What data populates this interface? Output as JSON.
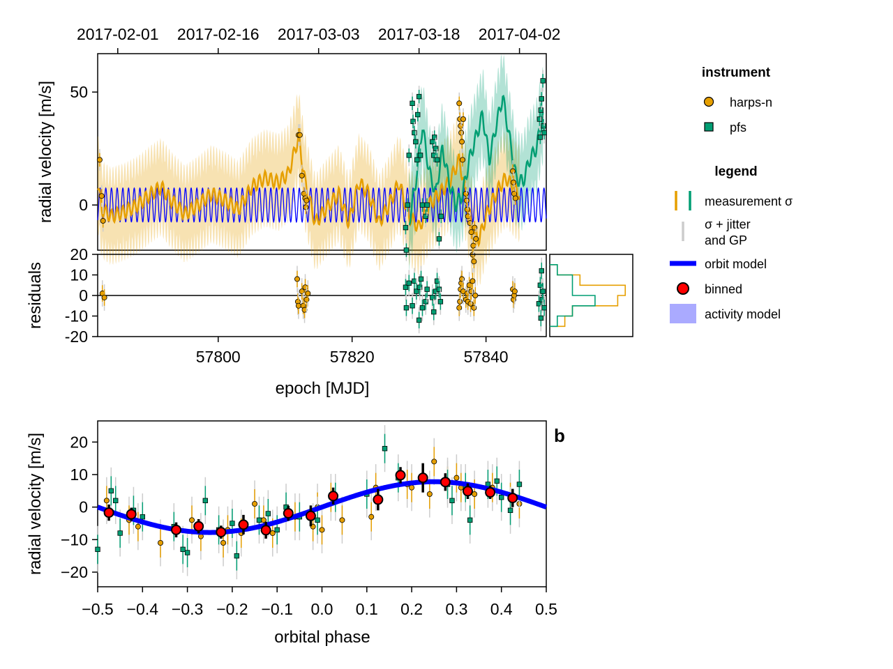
{
  "colors": {
    "harps": "#e69f00",
    "pfs": "#009e73",
    "orbit": "#0000ff",
    "binned": "#ff0000",
    "jitter": "#cccccc",
    "activity_fill": "#aaaaff"
  },
  "legend": {
    "instrument_title": "instrument",
    "instruments": [
      "harps-n",
      "pfs"
    ],
    "legend_title": "legend",
    "measurement_label": "measurement σ",
    "jitter_label_1": "σ + jitter",
    "jitter_label_2": "and GP",
    "orbit_label": "orbit model",
    "binned_label": "binned",
    "activity_label": "activity model"
  },
  "panel_b_label": "b",
  "chart_data": [
    {
      "id": "time_series",
      "type": "scatter",
      "xlabel": "epoch [MJD]",
      "ylabel": "radial velocity [m/s]",
      "xlim": [
        57782,
        57849
      ],
      "ylim": [
        -20,
        67
      ],
      "x_ticks": [
        57800,
        57820,
        57840
      ],
      "y_ticks": [
        0,
        50
      ],
      "top_axis": {
        "tick_mjd": [
          57785,
          57800,
          57815,
          57830,
          57845
        ],
        "tick_labels": [
          "2017-02-01",
          "2017-02-16",
          "2017-03-03",
          "2017-03-18",
          "2017-04-02"
        ]
      },
      "orbit_model": {
        "amplitude": 7.5,
        "period_days": 0.85
      },
      "harps_model": [
        [
          57782,
          10
        ],
        [
          57782.6,
          -2
        ],
        [
          57784,
          -5
        ],
        [
          57786,
          -3
        ],
        [
          57788,
          0
        ],
        [
          57790,
          5
        ],
        [
          57791.5,
          8
        ],
        [
          57793,
          2
        ],
        [
          57795,
          -4
        ],
        [
          57797,
          0
        ],
        [
          57799,
          5
        ],
        [
          57801,
          2
        ],
        [
          57803,
          -2
        ],
        [
          57805,
          8
        ],
        [
          57807,
          12
        ],
        [
          57809,
          10
        ],
        [
          57810.5,
          14
        ],
        [
          57812,
          30
        ],
        [
          57813,
          10
        ],
        [
          57814.5,
          -8
        ],
        [
          57816,
          -2
        ],
        [
          57818,
          5
        ],
        [
          57819.5,
          -8
        ],
        [
          57821,
          10
        ],
        [
          57822.5,
          5
        ],
        [
          57824,
          -8
        ],
        [
          57825.5,
          0
        ],
        [
          57827,
          10
        ],
        [
          57828.5,
          -5
        ],
        [
          57830,
          -10
        ],
        [
          57831.5,
          0
        ],
        [
          57833,
          5
        ],
        [
          57834.5,
          10
        ],
        [
          57836,
          20
        ],
        [
          57837,
          5
        ],
        [
          57838,
          -12
        ],
        [
          57839,
          -15
        ],
        [
          57840,
          -5
        ],
        [
          57841,
          2
        ],
        [
          57842,
          8
        ],
        [
          57843,
          12
        ],
        [
          57844,
          8
        ],
        [
          57845,
          5
        ]
      ],
      "pfs_model": [
        [
          57828.5,
          -8
        ],
        [
          57829.5,
          10
        ],
        [
          57830.5,
          35
        ],
        [
          57831.5,
          15
        ],
        [
          57832.5,
          5
        ],
        [
          57833.5,
          25
        ],
        [
          57834.5,
          10
        ],
        [
          57835.5,
          0
        ],
        [
          57836.5,
          5
        ],
        [
          57837.5,
          20
        ],
        [
          57838.5,
          30
        ],
        [
          57839.5,
          40
        ],
        [
          57840.5,
          20
        ],
        [
          57841.5,
          35
        ],
        [
          57842.5,
          48
        ],
        [
          57843.5,
          30
        ],
        [
          57844.5,
          12
        ],
        [
          57845.5,
          10
        ],
        [
          57846.5,
          20
        ],
        [
          57847.5,
          25
        ],
        [
          57848.5,
          40
        ]
      ],
      "harps_points": [
        [
          57782.3,
          20
        ],
        [
          57782.6,
          4
        ],
        [
          57782.8,
          -7
        ],
        [
          57812.0,
          31
        ],
        [
          57812.2,
          31
        ],
        [
          57812.5,
          13
        ],
        [
          57812.8,
          5
        ],
        [
          57813.0,
          3
        ],
        [
          57813.1,
          -1
        ],
        [
          57813.2,
          2
        ],
        [
          57836.0,
          45
        ],
        [
          57836.1,
          38
        ],
        [
          57836.2,
          35
        ],
        [
          57836.3,
          32
        ],
        [
          57836.4,
          28
        ],
        [
          57836.5,
          20
        ],
        [
          57836.6,
          38
        ],
        [
          57837.0,
          5
        ],
        [
          57837.1,
          2
        ],
        [
          57837.2,
          -2
        ],
        [
          57837.3,
          -5
        ],
        [
          57837.6,
          -8
        ],
        [
          57837.8,
          -12
        ],
        [
          57838.0,
          -22
        ],
        [
          57838.1,
          -18
        ],
        [
          57838.2,
          -25
        ],
        [
          57838.3,
          -10
        ],
        [
          57838.5,
          -15
        ],
        [
          57844.0,
          15
        ],
        [
          57844.1,
          10
        ],
        [
          57844.2,
          5
        ],
        [
          57844.4,
          3
        ]
      ],
      "pfs_points": [
        [
          57828.0,
          -10
        ],
        [
          57828.1,
          -20
        ],
        [
          57828.3,
          0
        ],
        [
          57828.5,
          22
        ],
        [
          57829.0,
          45
        ],
        [
          57829.1,
          37
        ],
        [
          57829.3,
          32
        ],
        [
          57829.5,
          28
        ],
        [
          57829.7,
          20
        ],
        [
          57829.8,
          40
        ],
        [
          57830.0,
          48
        ],
        [
          57830.2,
          22
        ],
        [
          57830.5,
          0
        ],
        [
          57831.0,
          -5
        ],
        [
          57831.2,
          0
        ],
        [
          57832.0,
          28
        ],
        [
          57832.2,
          22
        ],
        [
          57832.3,
          30
        ],
        [
          57832.5,
          25
        ],
        [
          57832.7,
          20
        ],
        [
          57833.0,
          -15
        ],
        [
          57833.3,
          -5
        ],
        [
          57848.0,
          38
        ],
        [
          57848.1,
          30
        ],
        [
          57848.2,
          42
        ],
        [
          57848.3,
          47
        ],
        [
          57848.5,
          55
        ],
        [
          57848.6,
          35
        ],
        [
          57848.7,
          32
        ]
      ]
    },
    {
      "id": "residuals",
      "type": "scatter",
      "ylabel": "residuals",
      "xlim": [
        57782,
        57849
      ],
      "ylim": [
        -20,
        20
      ],
      "y_ticks": [
        -20,
        -10,
        0,
        10,
        20
      ],
      "harps_points": [
        [
          57782.7,
          1
        ],
        [
          57783.0,
          -1
        ],
        [
          57811.8,
          8
        ],
        [
          57811.9,
          -3
        ],
        [
          57812.0,
          -5
        ],
        [
          57812.5,
          2
        ],
        [
          57812.7,
          -5
        ],
        [
          57812.9,
          -7
        ],
        [
          57813.0,
          4
        ],
        [
          57813.2,
          -2
        ],
        [
          57813.4,
          1
        ],
        [
          57836.0,
          -6
        ],
        [
          57836.1,
          -3
        ],
        [
          57836.2,
          3
        ],
        [
          57836.3,
          6
        ],
        [
          57836.4,
          8
        ],
        [
          57836.6,
          2
        ],
        [
          57837.0,
          -2
        ],
        [
          57837.2,
          1
        ],
        [
          57837.3,
          -3
        ],
        [
          57837.5,
          5
        ],
        [
          57837.7,
          -4
        ],
        [
          57837.8,
          2
        ],
        [
          57838.0,
          7
        ],
        [
          57838.2,
          -6
        ],
        [
          57838.4,
          0
        ],
        [
          57844.0,
          3
        ],
        [
          57844.1,
          -2
        ],
        [
          57844.2,
          0
        ],
        [
          57844.3,
          2
        ]
      ],
      "pfs_points": [
        [
          57828.0,
          4
        ],
        [
          57828.1,
          -6
        ],
        [
          57828.5,
          6
        ],
        [
          57829.0,
          -5
        ],
        [
          57829.3,
          7
        ],
        [
          57829.6,
          2
        ],
        [
          57830.0,
          -12
        ],
        [
          57830.1,
          4
        ],
        [
          57830.3,
          8
        ],
        [
          57830.5,
          -6
        ],
        [
          57831.0,
          -3
        ],
        [
          57831.2,
          3
        ],
        [
          57832.0,
          -1
        ],
        [
          57832.2,
          -8
        ],
        [
          57832.5,
          2
        ],
        [
          57832.7,
          7
        ],
        [
          57833.0,
          3
        ],
        [
          57833.2,
          -3
        ],
        [
          57847.9,
          -4
        ],
        [
          57848.1,
          5
        ],
        [
          57848.2,
          -11
        ],
        [
          57848.3,
          12
        ],
        [
          57848.4,
          -2
        ],
        [
          57848.5,
          2
        ],
        [
          57848.7,
          -6
        ]
      ]
    },
    {
      "id": "residual_histogram",
      "type": "bar",
      "bin_edges": [
        -15,
        -10,
        -5,
        0,
        5,
        10,
        15
      ],
      "harps_counts": [
        2,
        3,
        9,
        10,
        4,
        1
      ],
      "pfs_counts": [
        1,
        3,
        6,
        3,
        3,
        1
      ]
    },
    {
      "id": "phase_folded",
      "type": "scatter",
      "xlabel": "orbital phase",
      "ylabel": "radial velocity [m/s]",
      "xlim": [
        -0.5,
        0.5
      ],
      "ylim": [
        -24.5,
        26.5
      ],
      "x_ticks": [
        -0.5,
        -0.4,
        -0.3,
        -0.2,
        -0.1,
        0.0,
        0.1,
        0.2,
        0.3,
        0.4,
        0.5
      ],
      "x_tick_labels": [
        "−0.5",
        "−0.4",
        "−0.3",
        "−0.2",
        "−0.1",
        "0.0",
        "0.1",
        "0.2",
        "0.3",
        "0.4",
        "0.5"
      ],
      "y_ticks": [
        -20,
        -10,
        0,
        10,
        20
      ],
      "y_tick_labels": [
        "−20",
        "−10",
        "0",
        "10",
        "20"
      ],
      "orbit_model": {
        "amplitude": 7.8,
        "phase_of_max": 0.25
      },
      "binned": [
        {
          "x": -0.475,
          "y": -1.7,
          "e": 2.5
        },
        {
          "x": -0.425,
          "y": -2.2,
          "e": 2.0
        },
        {
          "x": -0.325,
          "y": -7.0,
          "e": 2.3
        },
        {
          "x": -0.275,
          "y": -5.9,
          "e": 2.2
        },
        {
          "x": -0.225,
          "y": -7.7,
          "e": 2.0
        },
        {
          "x": -0.175,
          "y": -5.4,
          "e": 3.0
        },
        {
          "x": -0.125,
          "y": -7.1,
          "e": 2.6
        },
        {
          "x": -0.075,
          "y": -1.9,
          "e": 2.3
        },
        {
          "x": -0.025,
          "y": -2.7,
          "e": 3.2
        },
        {
          "x": 0.025,
          "y": 3.4,
          "e": 2.6
        },
        {
          "x": 0.125,
          "y": 2.3,
          "e": 3.3
        },
        {
          "x": 0.175,
          "y": 9.8,
          "e": 2.5
        },
        {
          "x": 0.225,
          "y": 9.0,
          "e": 4.5
        },
        {
          "x": 0.275,
          "y": 7.7,
          "e": 2.7
        },
        {
          "x": 0.325,
          "y": 4.9,
          "e": 2.4
        },
        {
          "x": 0.375,
          "y": 4.5,
          "e": 2.0
        },
        {
          "x": 0.425,
          "y": 2.8,
          "e": 2.8
        }
      ],
      "harps_points": [
        [
          -0.48,
          2
        ],
        [
          -0.43,
          -4
        ],
        [
          -0.41,
          -6
        ],
        [
          -0.36,
          -11
        ],
        [
          -0.29,
          -4
        ],
        [
          -0.27,
          -9
        ],
        [
          -0.22,
          -11
        ],
        [
          -0.21,
          -7
        ],
        [
          -0.18,
          -8
        ],
        [
          -0.15,
          1
        ],
        [
          -0.13,
          -4
        ],
        [
          -0.11,
          -8
        ],
        [
          -0.06,
          -3
        ],
        [
          -0.02,
          -6
        ],
        [
          -0.01,
          0
        ],
        [
          0.0,
          -7
        ],
        [
          0.02,
          3
        ],
        [
          0.045,
          -4
        ],
        [
          0.11,
          -3
        ],
        [
          0.12,
          6
        ],
        [
          0.19,
          7
        ],
        [
          0.2,
          6
        ],
        [
          0.24,
          4
        ],
        [
          0.25,
          14
        ],
        [
          0.28,
          8
        ],
        [
          0.3,
          9
        ],
        [
          0.31,
          6
        ],
        [
          0.34,
          4
        ],
        [
          0.38,
          6
        ],
        [
          0.42,
          3
        ],
        [
          0.44,
          1
        ]
      ],
      "pfs_points": [
        [
          -0.5,
          -13
        ],
        [
          -0.47,
          5
        ],
        [
          -0.46,
          2
        ],
        [
          -0.45,
          -8
        ],
        [
          -0.42,
          -1
        ],
        [
          -0.4,
          -3
        ],
        [
          -0.33,
          -6
        ],
        [
          -0.31,
          -13
        ],
        [
          -0.3,
          -14
        ],
        [
          -0.26,
          2
        ],
        [
          -0.23,
          -7
        ],
        [
          -0.2,
          -5
        ],
        [
          -0.19,
          -15
        ],
        [
          -0.14,
          -4
        ],
        [
          -0.12,
          -2
        ],
        [
          -0.1,
          -7
        ],
        [
          -0.08,
          0
        ],
        [
          -0.05,
          -3
        ],
        [
          -0.01,
          -4
        ],
        [
          0.03,
          3
        ],
        [
          0.1,
          4
        ],
        [
          0.14,
          18
        ],
        [
          0.17,
          9
        ],
        [
          0.28,
          7
        ],
        [
          0.29,
          2
        ],
        [
          0.32,
          6
        ],
        [
          0.33,
          -4
        ],
        [
          0.37,
          7
        ],
        [
          0.39,
          8
        ],
        [
          0.4,
          3
        ],
        [
          0.42,
          -1
        ],
        [
          0.44,
          7
        ]
      ]
    }
  ]
}
